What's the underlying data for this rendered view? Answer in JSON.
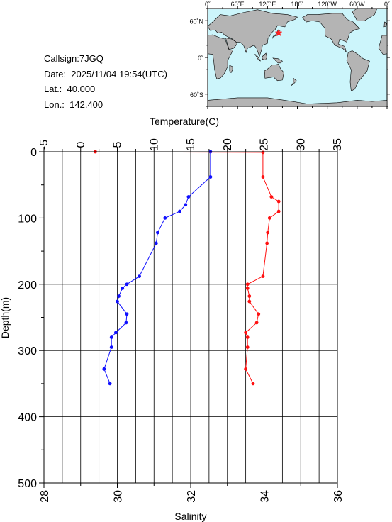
{
  "info": {
    "callsign": "Callsign:7JGQ",
    "date": "Date:  2025/11/04 19:54(UTC)",
    "lat": "Lat.:  40.000",
    "lon": "Lon.:  142.400"
  },
  "map": {
    "top_labels": [
      "0˚",
      "60˚E",
      "120˚E",
      "180˚",
      "120˚W",
      "60˚W",
      "0˚"
    ],
    "left_labels": [
      "60˚N",
      "0˚",
      "60˚S"
    ],
    "colors": {
      "ocean": "#ccf5fb",
      "land": "#b4b4b4",
      "marker": "#ff2020"
    },
    "marker": {
      "lat": 40.0,
      "lon": 142.4
    }
  },
  "chart_data": {
    "type": "line",
    "title": "",
    "top_axis": {
      "label": "Temperature(C)",
      "range": [
        -5,
        35
      ],
      "ticks": [
        "-5",
        "0",
        "5",
        "10",
        "15",
        "20",
        "25",
        "30",
        "35"
      ]
    },
    "bottom_axis": {
      "label": "Salinity",
      "range": [
        28,
        36
      ],
      "ticks": [
        "28",
        "30",
        "32",
        "34",
        "36"
      ]
    },
    "y_axis": {
      "label": "Depth(m)",
      "range": [
        0,
        500
      ],
      "inverted": true,
      "ticks": [
        "0",
        "100",
        "200",
        "300",
        "400",
        "500"
      ]
    },
    "grid": true,
    "series": [
      {
        "name": "",
        "axis": "top",
        "color": "#1010ff",
        "points": [
          [
            17.7,
            0
          ],
          [
            17.7,
            38
          ],
          [
            14.7,
            68
          ],
          [
            14.3,
            80
          ],
          [
            13.5,
            90
          ],
          [
            11.5,
            100
          ],
          [
            10.5,
            122
          ],
          [
            10.3,
            138
          ],
          [
            8.0,
            188
          ],
          [
            6.3,
            200
          ],
          [
            5.7,
            206
          ],
          [
            5.2,
            218
          ],
          [
            5.0,
            226
          ],
          [
            6.3,
            245
          ],
          [
            6.2,
            258
          ],
          [
            4.8,
            273
          ],
          [
            4.2,
            280
          ],
          [
            4.2,
            295
          ],
          [
            3.2,
            328
          ],
          [
            4.0,
            350
          ]
        ]
      },
      {
        "name": "",
        "axis": "bottom",
        "color": "#ff1010",
        "points": [
          [
            29.4,
            0
          ],
          [
            33.97,
            1
          ],
          [
            33.97,
            38
          ],
          [
            34.2,
            68
          ],
          [
            34.4,
            75
          ],
          [
            34.4,
            90
          ],
          [
            34.15,
            100
          ],
          [
            34.1,
            122
          ],
          [
            34.08,
            138
          ],
          [
            33.97,
            188
          ],
          [
            33.55,
            200
          ],
          [
            33.55,
            206
          ],
          [
            33.6,
            218
          ],
          [
            33.6,
            226
          ],
          [
            33.85,
            245
          ],
          [
            33.8,
            258
          ],
          [
            33.5,
            273
          ],
          [
            33.55,
            280
          ],
          [
            33.55,
            295
          ],
          [
            33.5,
            328
          ],
          [
            33.7,
            350
          ]
        ]
      }
    ]
  }
}
